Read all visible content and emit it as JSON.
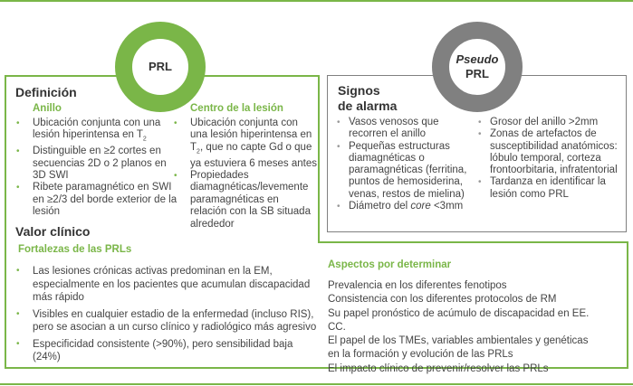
{
  "colors": {
    "accent": "#7ab648",
    "gray": "#808080"
  },
  "prl_circle": {
    "label": "PRL"
  },
  "pseudo_circle": {
    "label_italic": "Pseudo",
    "label": "PRL"
  },
  "definicion": {
    "title": "Definición",
    "anillo": {
      "title": "Anillo",
      "items": [
        {
          "text": "Ubicación conjunta con una lesión hiperintensa en T",
          "sub": "2"
        },
        {
          "text": "Distinguible en ≥2 cortes en secuencias 2D o 2 planos en 3D SWI"
        },
        {
          "text": "Ribete paramagnético en SWI en ≥2/3 del borde exterior de la lesión"
        }
      ]
    },
    "centro": {
      "title": "Centro de la lesión",
      "items": [
        {
          "text": "Ubicación conjunta con una lesión hiperintensa en T",
          "sub": "2",
          "rest": ", que no capte Gd o que ya estuviera 6 meses antes"
        },
        {
          "text": "Propiedades diamagnéticas/levemente paramagnéticas en relación con la SB situada alrededor"
        }
      ]
    }
  },
  "signos": {
    "title_1": "Signos",
    "title_2": "de alarma",
    "col1": [
      "Vasos venosos que recorren el anillo",
      "Pequeñas estructuras diamagnéticas o paramagnéticas (ferritina, puntos de  hemosiderina, venas, restos de mielina)"
    ],
    "col1_last": {
      "pre": "Diámetro del ",
      "italic": "core",
      "post": " <3mm"
    },
    "col2": [
      "Grosor del anillo >2mm",
      "Zonas de artefactos de susceptibilidad anatómicos: lóbulo temporal, corteza frontoorbitaria, infratentorial",
      "Tardanza en identificar la lesión como PRL"
    ]
  },
  "valor": {
    "title": "Valor clínico",
    "fortalezas": {
      "title": "Fortalezas de las PRLs",
      "items": [
        "Las lesiones crónicas activas predominan en la EM, especialmente en los pacientes que acumulan discapacidad más rápido",
        "Visibles en cualquier estadio de la enfermedad (incluso RIS), pero se asocian a un curso clínico y radiológico más agresivo",
        "Especificidad consistente (>90%), pero sensibilidad baja (24%)"
      ]
    },
    "aspectos": {
      "title": "Aspectos por determinar",
      "items": [
        "Prevalencia en los diferentes fenotipos",
        "Consistencia con los diferentes protocolos de RM",
        "Su papel pronóstico de acúmulo de discapacidad en EE. CC.",
        "El papel de los TMEs, variables ambientales y genéticas en la formación y evolución de las PRLs",
        "El impacto clínico de prevenir/resolver las PRLs"
      ]
    }
  }
}
